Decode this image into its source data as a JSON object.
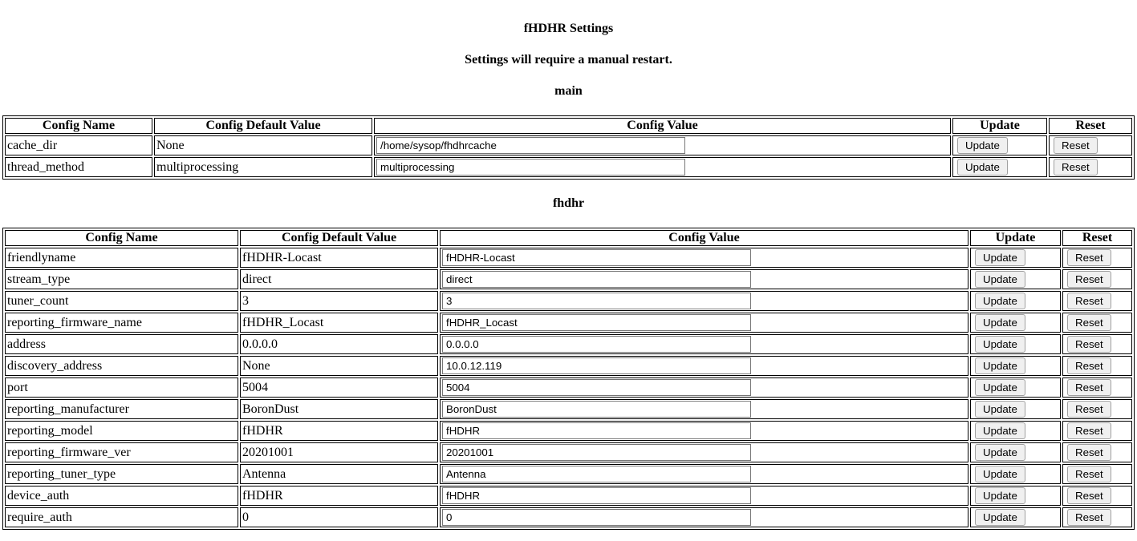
{
  "page": {
    "title": "fHDHR Settings",
    "subtitle": "Settings will require a manual restart."
  },
  "columns": [
    "Config Name",
    "Config Default Value",
    "Config Value",
    "Update",
    "Reset"
  ],
  "buttons": {
    "update": "Update",
    "reset": "Reset"
  },
  "sections": [
    {
      "heading": "main",
      "rows": [
        {
          "name": "cache_dir",
          "default": "None",
          "value": "/home/sysop/fhdhrcache"
        },
        {
          "name": "thread_method",
          "default": "multiprocessing",
          "value": "multiprocessing"
        }
      ]
    },
    {
      "heading": "fhdhr",
      "rows": [
        {
          "name": "friendlyname",
          "default": "fHDHR-Locast",
          "value": "fHDHR-Locast"
        },
        {
          "name": "stream_type",
          "default": "direct",
          "value": "direct"
        },
        {
          "name": "tuner_count",
          "default": "3",
          "value": "3"
        },
        {
          "name": "reporting_firmware_name",
          "default": "fHDHR_Locast",
          "value": "fHDHR_Locast"
        },
        {
          "name": "address",
          "default": "0.0.0.0",
          "value": "0.0.0.0"
        },
        {
          "name": "discovery_address",
          "default": "None",
          "value": "10.0.12.119"
        },
        {
          "name": "port",
          "default": "5004",
          "value": "5004"
        },
        {
          "name": "reporting_manufacturer",
          "default": "BoronDust",
          "value": "BoronDust"
        },
        {
          "name": "reporting_model",
          "default": "fHDHR",
          "value": "fHDHR"
        },
        {
          "name": "reporting_firmware_ver",
          "default": "20201001",
          "value": "20201001"
        },
        {
          "name": "reporting_tuner_type",
          "default": "Antenna",
          "value": "Antenna"
        },
        {
          "name": "device_auth",
          "default": "fHDHR",
          "value": "fHDHR"
        },
        {
          "name": "require_auth",
          "default": "0",
          "value": "0"
        }
      ]
    }
  ]
}
